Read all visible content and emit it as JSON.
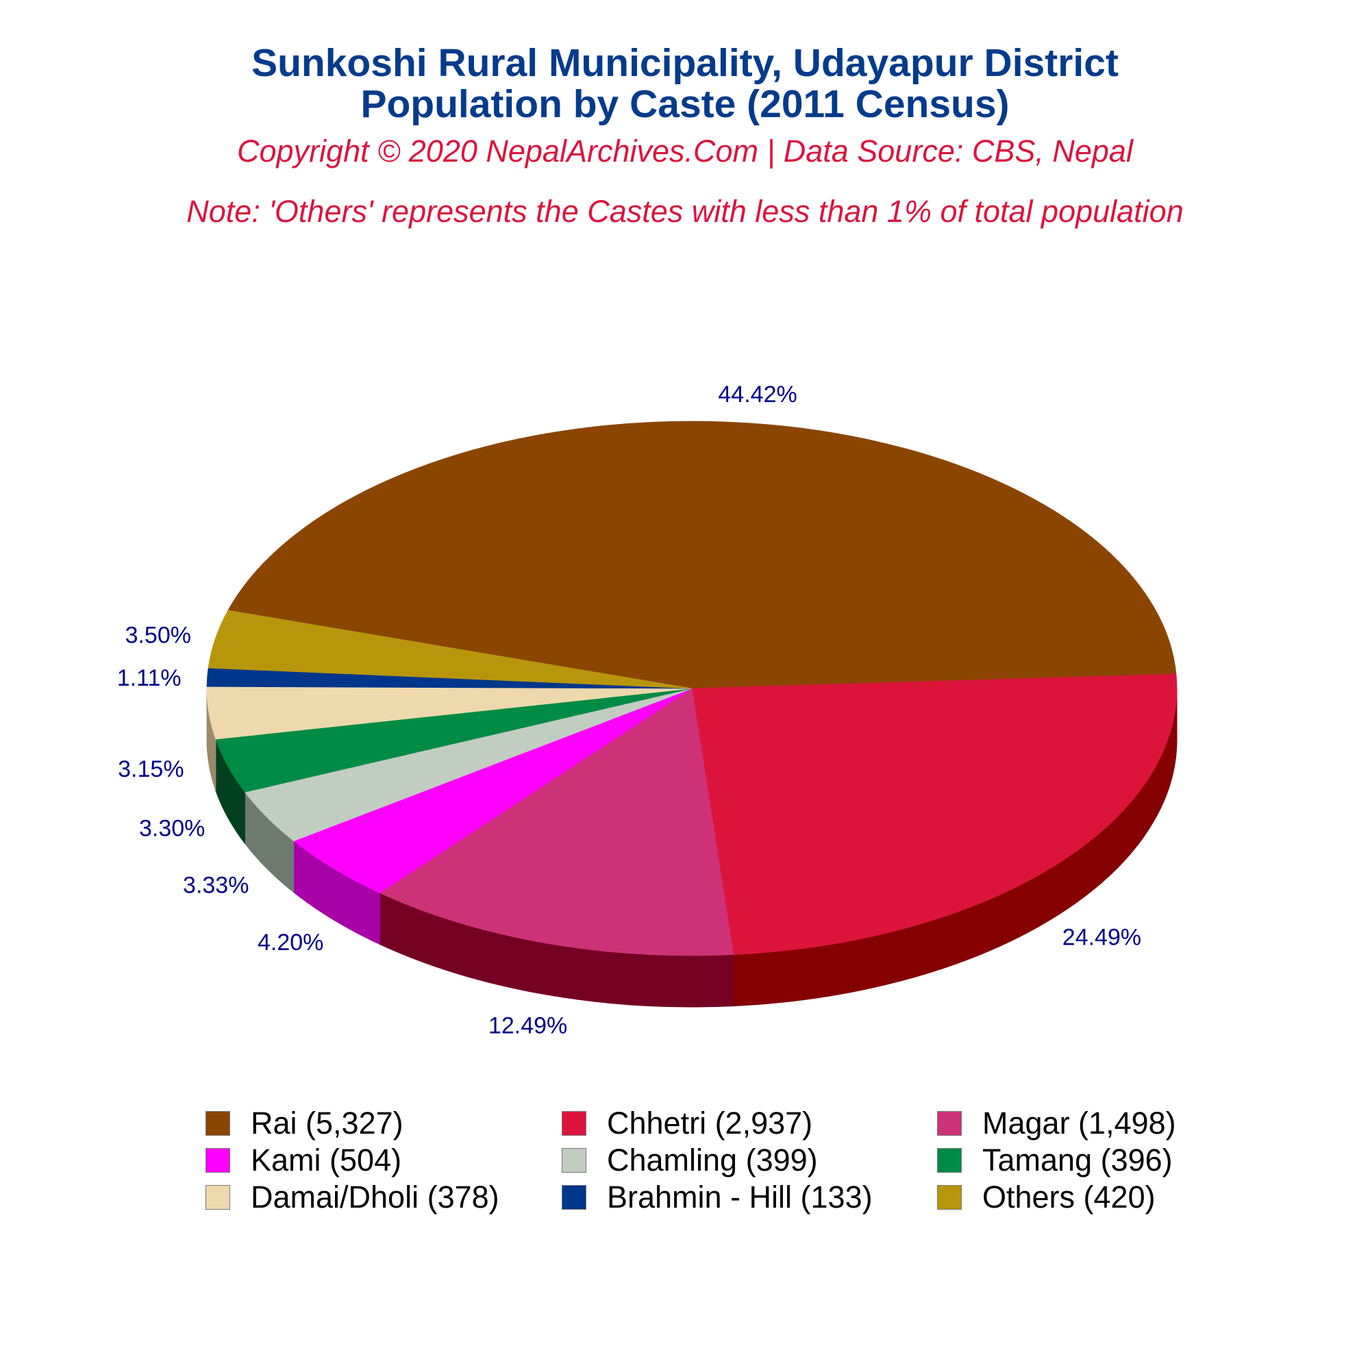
{
  "header": {
    "title_line1": "Sunkoshi Rural Municipality, Udayapur District",
    "title_line2": "Population by Caste (2011 Census)",
    "copyright": "Copyright © 2020 NepalArchives.Com | Data Source: CBS, Nepal",
    "note": "Note: 'Others' represents the Castes with less than 1% of total population"
  },
  "chart_data": {
    "type": "pie",
    "style": "3d",
    "legend_position": "bottom",
    "label_color": "#00008b",
    "slices": [
      {
        "label": "Rai",
        "value": 5327,
        "percent": 44.42,
        "percent_label": "44.42%",
        "legend_label": "Rai (5,327)",
        "color": "#8b4500",
        "side_color": "#3d1e00"
      },
      {
        "label": "Chhetri",
        "value": 2937,
        "percent": 24.49,
        "percent_label": "24.49%",
        "legend_label": "Chhetri (2,937)",
        "color": "#dc143c",
        "side_color": "#850000"
      },
      {
        "label": "Magar",
        "value": 1498,
        "percent": 12.49,
        "percent_label": "12.49%",
        "legend_label": "Magar (1,498)",
        "color": "#cd3278",
        "side_color": "#740022"
      },
      {
        "label": "Kami",
        "value": 504,
        "percent": 4.2,
        "percent_label": "4.20%",
        "legend_label": "Kami (504)",
        "color": "#ff00ff",
        "side_color": "#a700a7"
      },
      {
        "label": "Chamling",
        "value": 399,
        "percent": 3.33,
        "percent_label": "3.33%",
        "legend_label": "Chamling (399)",
        "color": "#c1cdc1",
        "side_color": "#6f7a6f"
      },
      {
        "label": "Tamang",
        "value": 396,
        "percent": 3.3,
        "percent_label": "3.30%",
        "legend_label": "Tamang (396)",
        "color": "#008b45",
        "side_color": "#004020"
      },
      {
        "label": "Damai/Dholi",
        "value": 378,
        "percent": 3.15,
        "percent_label": "3.15%",
        "legend_label": "Damai/Dholi (378)",
        "color": "#eed8ae",
        "side_color": "#9a8a6a"
      },
      {
        "label": "Brahmin - Hill",
        "value": 133,
        "percent": 1.11,
        "percent_label": "1.11%",
        "legend_label": "Brahmin - Hill (133)",
        "color": "#00368b",
        "side_color": "#001a45"
      },
      {
        "label": "Others",
        "value": 420,
        "percent": 3.5,
        "percent_label": "3.50%",
        "legend_label": "Others (420)",
        "color": "#b8960c",
        "side_color": "#6a5500"
      }
    ]
  }
}
